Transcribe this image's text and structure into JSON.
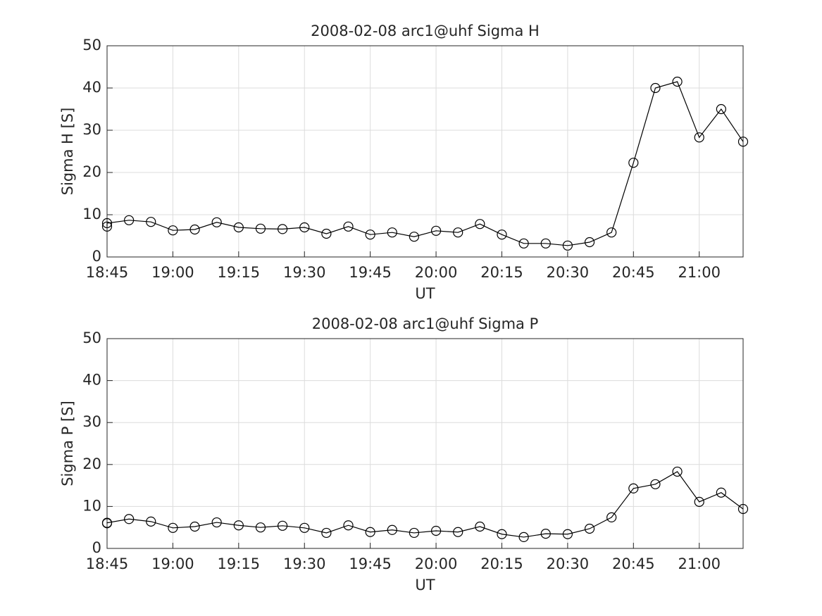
{
  "chart_data": [
    {
      "type": "line",
      "title": "2008-02-08  arc1@uhf Sigma H",
      "xlabel": "UT",
      "ylabel": "Sigma H [S]",
      "x": [
        "18:45",
        "18:45",
        "18:50",
        "18:55",
        "19:00",
        "19:05",
        "19:10",
        "19:15",
        "19:20",
        "19:25",
        "19:30",
        "19:35",
        "19:40",
        "19:45",
        "19:50",
        "19:55",
        "20:00",
        "20:05",
        "20:10",
        "20:15",
        "20:20",
        "20:25",
        "20:30",
        "20:35",
        "20:40",
        "20:45",
        "20:50",
        "20:55",
        "21:00",
        "21:05",
        "21:10"
      ],
      "series": [
        {
          "color": "#000000",
          "values": [
            7.2,
            8.0,
            8.7,
            8.3,
            6.3,
            6.5,
            8.2,
            7.0,
            6.7,
            6.6,
            7.0,
            5.5,
            7.2,
            5.3,
            5.8,
            4.8,
            6.2,
            5.8,
            7.8,
            5.3,
            3.2,
            3.2,
            2.7,
            3.5,
            5.8,
            22.3,
            40.0,
            41.5,
            28.3,
            35.0,
            27.3
          ]
        }
      ],
      "xlim": [
        "18:45",
        "21:10"
      ],
      "xticks": [
        "18:45",
        "19:00",
        "19:15",
        "19:30",
        "19:45",
        "20:00",
        "20:15",
        "20:30",
        "20:45",
        "21:00"
      ],
      "ylim": [
        0,
        50
      ],
      "yticks": [
        0,
        10,
        20,
        30,
        40,
        50
      ],
      "grid": true
    },
    {
      "type": "line",
      "title": "2008-02-08  arc1@uhf Sigma P",
      "xlabel": "UT",
      "ylabel": "Sigma P [S]",
      "x": [
        "18:45",
        "18:45",
        "18:50",
        "18:55",
        "19:00",
        "19:05",
        "19:10",
        "19:15",
        "19:20",
        "19:25",
        "19:30",
        "19:35",
        "19:40",
        "19:45",
        "19:50",
        "19:55",
        "20:00",
        "20:05",
        "20:10",
        "20:15",
        "20:20",
        "20:25",
        "20:30",
        "20:35",
        "20:40",
        "20:45",
        "20:50",
        "20:55",
        "21:00",
        "21:05",
        "21:10"
      ],
      "series": [
        {
          "color": "#000000",
          "values": [
            6.0,
            6.1,
            7.0,
            6.4,
            4.9,
            5.2,
            6.2,
            5.5,
            5.0,
            5.4,
            4.9,
            3.7,
            5.5,
            3.9,
            4.4,
            3.7,
            4.2,
            3.9,
            5.2,
            3.4,
            2.7,
            3.5,
            3.4,
            4.7,
            7.4,
            14.3,
            15.3,
            18.3,
            11.1,
            13.3,
            9.4
          ]
        }
      ],
      "xlim": [
        "18:45",
        "21:10"
      ],
      "xticks": [
        "18:45",
        "19:00",
        "19:15",
        "19:30",
        "19:45",
        "20:00",
        "20:15",
        "20:30",
        "20:45",
        "21:00"
      ],
      "ylim": [
        0,
        50
      ],
      "yticks": [
        0,
        10,
        20,
        30,
        40,
        50
      ],
      "grid": true
    }
  ]
}
